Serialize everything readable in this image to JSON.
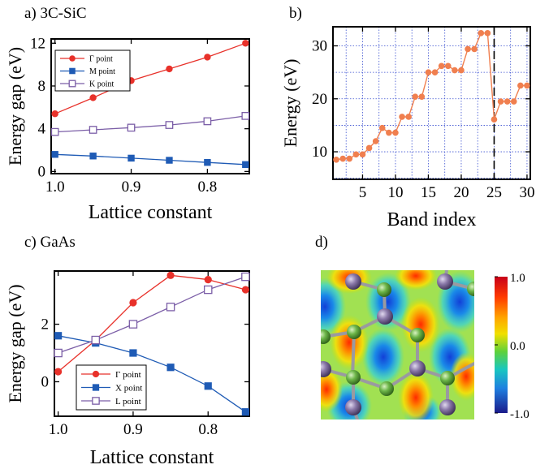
{
  "panels": {
    "a": {
      "label": "a) 3C-SiC"
    },
    "b": {
      "label": "b)"
    },
    "c": {
      "label": "c) GaAs"
    },
    "d": {
      "label": "d)"
    }
  },
  "chart_data": [
    {
      "id": "a",
      "type": "line",
      "title": "3C-SiC",
      "xlabel": "Lattice constant",
      "ylabel": "Energy gap (eV)",
      "xlim": [
        1.005,
        0.745
      ],
      "ylim": [
        -0.2,
        12.4
      ],
      "x_reversed": true,
      "x_ticks": [
        1.0,
        0.9,
        0.8
      ],
      "x_tick_labels": [
        "1.0",
        "0.9",
        "0.8"
      ],
      "y_ticks": [
        0,
        4,
        8,
        12
      ],
      "y_tick_labels": [
        "0",
        "4",
        "8",
        "12"
      ],
      "x": [
        1.0,
        0.95,
        0.9,
        0.85,
        0.8,
        0.75
      ],
      "legend_position": "top-left",
      "series": [
        {
          "name": "Γ point",
          "color": "#e8312a",
          "marker": "circle-filled",
          "values": [
            5.4,
            6.9,
            8.5,
            9.6,
            10.7,
            12.0
          ]
        },
        {
          "name": "M point",
          "color": "#1f5bb5",
          "marker": "square-filled",
          "values": [
            1.6,
            1.45,
            1.25,
            1.05,
            0.85,
            0.65
          ]
        },
        {
          "name": "K point",
          "color": "#7b5ea7",
          "marker": "square-open",
          "values": [
            3.7,
            3.9,
            4.1,
            4.35,
            4.7,
            5.2
          ]
        }
      ]
    },
    {
      "id": "b",
      "type": "line",
      "title": "",
      "xlabel": "Band index",
      "ylabel": "Energy  (eV)",
      "xlim": [
        0.5,
        30.5
      ],
      "ylim": [
        4.8,
        33.6
      ],
      "grid": true,
      "x_ticks": [
        5,
        10,
        15,
        20,
        25,
        30
      ],
      "x_tick_labels": [
        "5",
        "10",
        "15",
        "20",
        "25",
        "30"
      ],
      "y_ticks": [
        10,
        20,
        30
      ],
      "y_tick_labels": [
        "10",
        "20",
        "30"
      ],
      "vline_x": 25,
      "color": "#f07f4f",
      "x": [
        1,
        2,
        3,
        4,
        5,
        6,
        7,
        8,
        9,
        10,
        11,
        12,
        13,
        14,
        15,
        16,
        17,
        18,
        19,
        20,
        21,
        22,
        23,
        24,
        25,
        26,
        27,
        28,
        29,
        30
      ],
      "values": [
        8.5,
        8.7,
        8.7,
        9.5,
        9.5,
        10.7,
        12.0,
        14.5,
        13.6,
        13.6,
        16.6,
        16.6,
        20.4,
        20.4,
        25.0,
        25.0,
        26.2,
        26.2,
        25.4,
        25.4,
        29.4,
        29.4,
        32.4,
        32.4,
        16.1,
        19.5,
        19.5,
        19.5,
        22.5,
        22.5
      ]
    },
    {
      "id": "c",
      "type": "line",
      "title": "GaAs",
      "xlabel": "Lattice constant",
      "ylabel": "Energy gap (eV)",
      "xlim": [
        1.005,
        0.745
      ],
      "ylim": [
        -1.2,
        3.85
      ],
      "x_reversed": true,
      "x_ticks": [
        1.0,
        0.9,
        0.8
      ],
      "x_tick_labels": [
        "1.0",
        "0.9",
        "0.8"
      ],
      "y_ticks": [
        0,
        2
      ],
      "y_tick_labels": [
        "0",
        "2"
      ],
      "x": [
        1.0,
        0.95,
        0.9,
        0.85,
        0.8,
        0.75
      ],
      "legend_position": "bottom-left",
      "series": [
        {
          "name": "Γ point",
          "color": "#e8312a",
          "marker": "circle-filled",
          "values": [
            0.35,
            1.45,
            2.75,
            3.7,
            3.55,
            3.2
          ]
        },
        {
          "name": "X point",
          "color": "#1f5bb5",
          "marker": "square-filled",
          "values": [
            1.6,
            1.35,
            1.0,
            0.5,
            -0.15,
            -1.05
          ]
        },
        {
          "name": "L point",
          "color": "#7b5ea7",
          "marker": "square-open",
          "values": [
            1.0,
            1.45,
            2.0,
            2.6,
            3.2,
            3.65
          ]
        }
      ]
    },
    {
      "id": "d",
      "type": "heatmap",
      "title": "",
      "colorbar_ticks": [
        "1.0",
        "0.0",
        "-1.0"
      ],
      "colorbar_range": [
        -1.0,
        1.0
      ],
      "atoms": {
        "large_color": "#7d6a9e",
        "small_color": "#5fae3b"
      }
    }
  ]
}
